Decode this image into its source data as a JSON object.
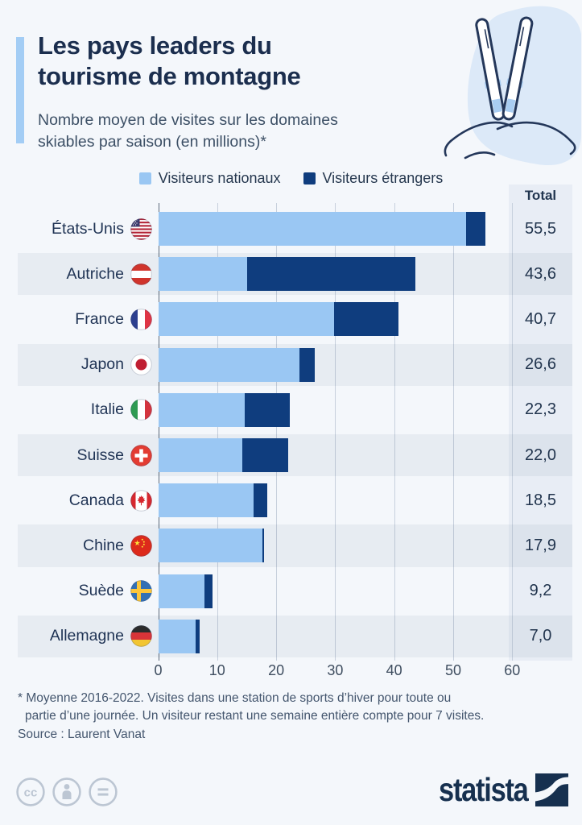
{
  "header": {
    "title_lines": [
      "Les pays leaders du",
      "tourisme de montagne"
    ],
    "subtitle_lines": [
      "Nombre moyen de visites sur les domaines",
      "skiables par saison (en millions)*"
    ],
    "accent_color": "#a3cdf5"
  },
  "chart_data": {
    "type": "bar",
    "orientation": "horizontal",
    "stacked": true,
    "title": "Les pays leaders du tourisme de montagne",
    "subtitle": "Nombre moyen de visites sur les domaines skiables par saison (en millions)*",
    "total_label": "Total",
    "categories": [
      "États-Unis",
      "Autriche",
      "France",
      "Japon",
      "Italie",
      "Suisse",
      "Canada",
      "Chine",
      "Suède",
      "Allemagne"
    ],
    "flags": [
      "us",
      "at",
      "fr",
      "jp",
      "it",
      "ch",
      "ca",
      "cn",
      "se",
      "de"
    ],
    "series": [
      {
        "name": "Visiteurs nationaux",
        "color": "#9ac7f3",
        "values": [
          52.2,
          15.0,
          29.8,
          23.9,
          14.6,
          14.3,
          16.2,
          17.7,
          7.8,
          6.4
        ]
      },
      {
        "name": "Visiteurs étrangers",
        "color": "#0f3d7e",
        "values": [
          3.3,
          28.6,
          10.9,
          2.7,
          7.7,
          7.7,
          2.3,
          0.2,
          1.4,
          0.6
        ]
      }
    ],
    "totals": [
      55.5,
      43.6,
      40.7,
      26.6,
      22.3,
      22.0,
      18.5,
      17.9,
      9.2,
      7.0
    ],
    "totals_display": [
      "55,5",
      "43,6",
      "40,7",
      "26,6",
      "22,3",
      "22,0",
      "18,5",
      "17,9",
      "9,2",
      "7,0"
    ],
    "x_ticks": [
      0,
      10,
      20,
      30,
      40,
      50,
      60
    ],
    "xlim": [
      0,
      60
    ],
    "grid": true,
    "legend_position": "top"
  },
  "footer": {
    "footnote_lines": [
      "* Moyenne 2016-2022. Visites dans une station de sports d’hiver pour toute ou",
      "partie d’une journée. Un visiteur restant une semaine entière compte pour 7 visites."
    ],
    "source": "Source : Laurent Vanat",
    "logo_text": "statista",
    "license_icons": [
      "cc",
      "attribution",
      "no-derivatives"
    ]
  }
}
